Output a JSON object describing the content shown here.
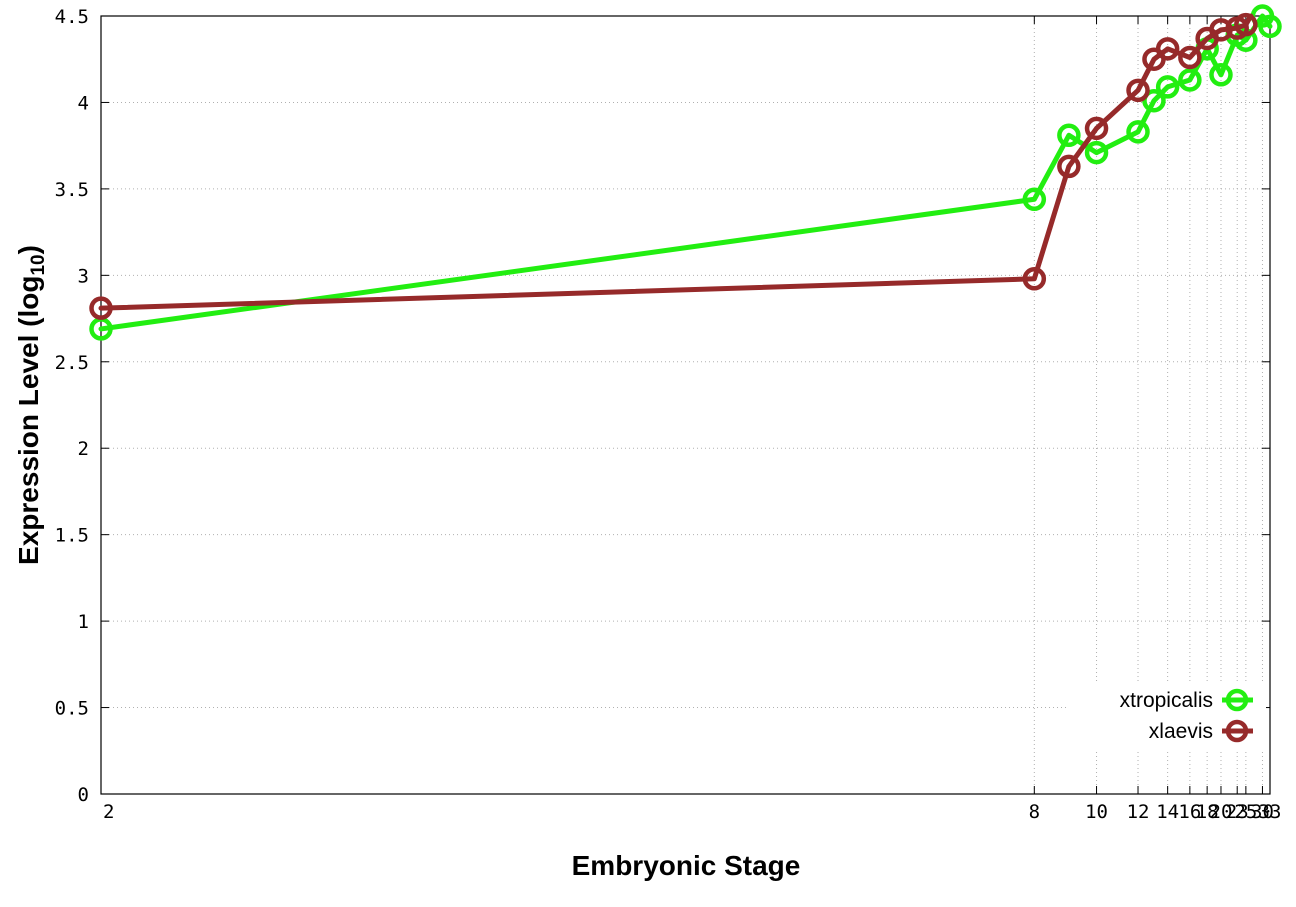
{
  "chart_data": {
    "type": "line",
    "title": "",
    "xlabel": "Embryonic Stage",
    "ylabel_main": "Expression Level (log",
    "ylabel_sub": "10",
    "ylabel_close": ")",
    "xlim": [
      2,
      33
    ],
    "ylim": [
      0,
      4.5
    ],
    "x_ticks": [
      2,
      8,
      10,
      12,
      14,
      16,
      18,
      20,
      23,
      25,
      30,
      33
    ],
    "x_tick_labels": [
      "2",
      "8",
      "10",
      "12",
      "14",
      "16",
      "18",
      "20",
      "23",
      "25",
      "30",
      "33"
    ],
    "y_ticks": [
      0,
      0.5,
      1,
      1.5,
      2,
      2.5,
      3,
      3.5,
      4,
      4.5
    ],
    "y_tick_labels": [
      "0",
      "0.5",
      "1",
      "1.5",
      "2",
      "2.5",
      "3",
      "3.5",
      "4",
      "4.5"
    ],
    "grid": true,
    "legend_position": "bottom-right",
    "series": [
      {
        "name": "xtropicalis",
        "color": "#22ee11",
        "marker": "open-circle",
        "x": [
          2,
          8,
          9,
          10,
          12,
          13,
          14,
          16,
          18,
          20,
          23,
          25,
          30,
          33
        ],
        "y": [
          2.69,
          3.44,
          3.81,
          3.71,
          3.83,
          4.01,
          4.09,
          4.13,
          4.31,
          4.16,
          4.39,
          4.36,
          4.5,
          4.44
        ]
      },
      {
        "name": "xlaevis",
        "color": "#962a2a",
        "marker": "open-circle",
        "x": [
          2,
          8,
          9,
          10,
          12,
          13,
          14,
          16,
          18,
          20,
          23,
          25
        ],
        "y": [
          2.81,
          2.98,
          3.63,
          3.85,
          4.07,
          4.25,
          4.31,
          4.26,
          4.37,
          4.42,
          4.43,
          4.45
        ],
        "line_extension": {
          "x": 26.3,
          "y": 4.5
        }
      }
    ]
  }
}
